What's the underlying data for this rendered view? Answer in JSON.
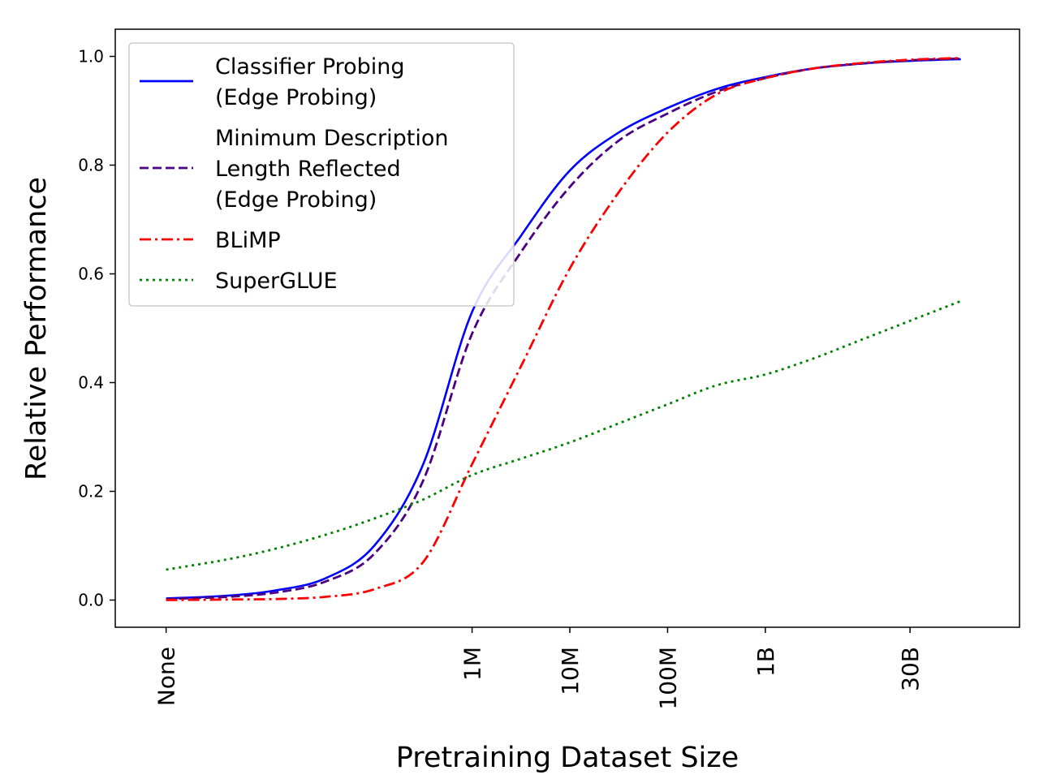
{
  "chart_data": {
    "type": "line",
    "title": "",
    "xlabel": "Pretraining Dataset Size",
    "ylabel": "Relative Performance",
    "ylim": [
      -0.05,
      1.05
    ],
    "yticks": [
      0.0,
      0.2,
      0.4,
      0.6,
      0.8,
      1.0
    ],
    "ytick_labels": [
      "0.0",
      "0.2",
      "0.4",
      "0.6",
      "0.8",
      "1.0"
    ],
    "x_log10_range": [
      2.35,
      11.6
    ],
    "xticks": [
      {
        "label": "None",
        "log10": 2.87
      },
      {
        "label": "1M",
        "log10": 6.0
      },
      {
        "label": "10M",
        "log10": 7.0
      },
      {
        "label": "100M",
        "log10": 8.0
      },
      {
        "label": "1B",
        "log10": 9.0
      },
      {
        "label": "30B",
        "log10": 10.48
      }
    ],
    "grid": false,
    "legend_position": "top-left",
    "series": [
      {
        "name": "Classifier Probing (Edge Probing)",
        "legend_lines": [
          "Classifier Probing",
          "(Edge Probing)"
        ],
        "color": "#0000ff",
        "style": "solid",
        "x_log10": [
          2.87,
          3.5,
          4.0,
          4.5,
          5.0,
          5.5,
          6.0,
          6.5,
          7.0,
          7.5,
          8.0,
          8.5,
          9.0,
          9.5,
          10.0,
          10.5,
          11.0
        ],
        "values": [
          0.003,
          0.008,
          0.018,
          0.04,
          0.1,
          0.25,
          0.53,
          0.67,
          0.79,
          0.86,
          0.905,
          0.94,
          0.962,
          0.978,
          0.987,
          0.992,
          0.995
        ]
      },
      {
        "name": "Minimum Description Length Reflected (Edge Probing)",
        "legend_lines": [
          "Minimum Description",
          "Length Reflected",
          "(Edge Probing)"
        ],
        "color": "#4b0082",
        "style": "dashed",
        "x_log10": [
          2.87,
          3.5,
          4.0,
          4.5,
          5.0,
          5.5,
          6.0,
          6.5,
          7.0,
          7.5,
          8.0,
          8.5,
          9.0,
          9.5,
          10.0,
          10.5,
          11.0
        ],
        "values": [
          0.002,
          0.006,
          0.014,
          0.034,
          0.085,
          0.22,
          0.49,
          0.64,
          0.76,
          0.845,
          0.895,
          0.935,
          0.96,
          0.978,
          0.987,
          0.993,
          0.996
        ]
      },
      {
        "name": "BLiMP",
        "legend_lines": [
          "BLiMP"
        ],
        "color": "#ff0000",
        "style": "dashdot",
        "x_log10": [
          2.87,
          3.5,
          4.0,
          4.5,
          5.0,
          5.5,
          6.0,
          6.5,
          7.0,
          7.5,
          8.0,
          8.5,
          9.0,
          9.5,
          10.0,
          10.5,
          11.0
        ],
        "values": [
          0.0,
          0.001,
          0.002,
          0.006,
          0.02,
          0.07,
          0.25,
          0.43,
          0.61,
          0.75,
          0.86,
          0.93,
          0.96,
          0.978,
          0.988,
          0.994,
          0.997
        ]
      },
      {
        "name": "SuperGLUE",
        "legend_lines": [
          "SuperGLUE"
        ],
        "color": "#008000",
        "style": "dotted",
        "x_log10": [
          2.87,
          3.5,
          4.0,
          4.5,
          5.0,
          5.5,
          6.0,
          6.5,
          7.0,
          7.5,
          8.0,
          8.5,
          9.0,
          9.5,
          10.0,
          10.5,
          11.0
        ],
        "values": [
          0.056,
          0.075,
          0.095,
          0.12,
          0.15,
          0.185,
          0.23,
          0.26,
          0.29,
          0.325,
          0.36,
          0.395,
          0.415,
          0.445,
          0.48,
          0.515,
          0.55
        ]
      }
    ]
  }
}
